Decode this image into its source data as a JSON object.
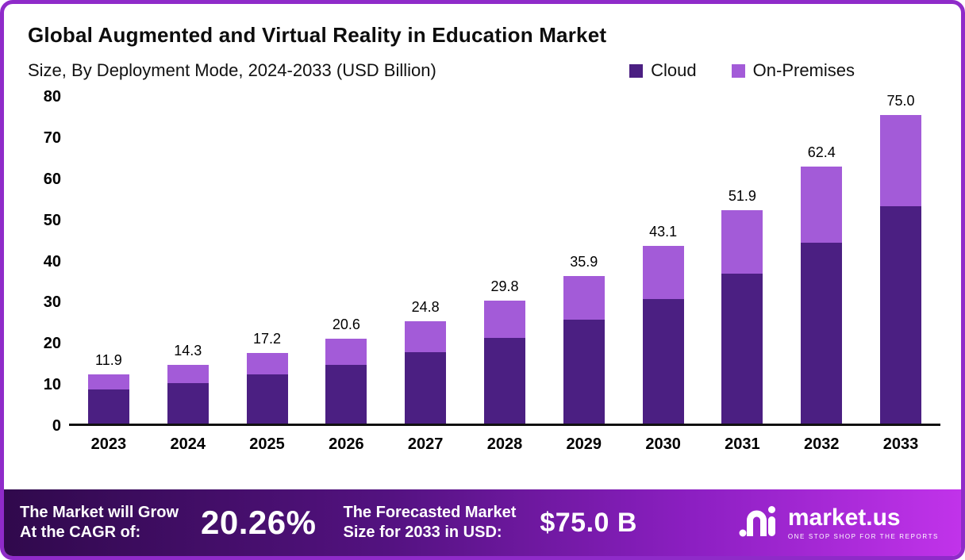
{
  "title": "Global Augmented and Virtual Reality in Education Market",
  "subtitle": "Size, By Deployment Mode, 2024-2033 (USD Billion)",
  "legend": [
    {
      "label": "Cloud",
      "color": "#4B1F82"
    },
    {
      "label": "On-Premises",
      "color": "#A35BD8"
    }
  ],
  "chart_data": {
    "type": "bar",
    "stacked": true,
    "title": "Global Augmented and Virtual Reality in Education Market",
    "subtitle": "Size, By Deployment Mode, 2024-2033 (USD Billion)",
    "categories": [
      "2023",
      "2024",
      "2025",
      "2026",
      "2027",
      "2028",
      "2029",
      "2030",
      "2031",
      "2032",
      "2033"
    ],
    "series": [
      {
        "name": "Cloud",
        "color": "#4B1F82",
        "values": [
          8.3,
          9.8,
          12.0,
          14.3,
          17.4,
          20.9,
          25.3,
          30.3,
          36.4,
          44.0,
          52.8
        ]
      },
      {
        "name": "On-Premises",
        "color": "#A35BD8",
        "values": [
          3.6,
          4.5,
          5.2,
          6.3,
          7.4,
          8.9,
          10.6,
          12.8,
          15.5,
          18.4,
          22.2
        ]
      }
    ],
    "totals": [
      11.9,
      14.3,
      17.2,
      20.6,
      24.8,
      29.8,
      35.9,
      43.1,
      51.9,
      62.4,
      75.0
    ],
    "xlabel": "",
    "ylabel": "",
    "ylim": [
      0,
      80
    ],
    "ytick_step": 10,
    "grid": false,
    "legend_position": "top-right",
    "unit": "USD Billion"
  },
  "footer": {
    "cagr_label_line1": "The Market will Grow",
    "cagr_label_line2": "At the CAGR of:",
    "cagr_value": "20.26%",
    "forecast_label_line1": "The Forecasted Market",
    "forecast_label_line2": "Size for 2033 in USD:",
    "forecast_value": "$75.0 B",
    "brand": "market.us",
    "brand_tagline": "ONE STOP SHOP FOR THE REPORTS"
  },
  "colors": {
    "frame_border": "#8F2BC9",
    "cloud": "#4B1F82",
    "on_premises": "#A35BD8",
    "footer_gradient_start": "#30094C",
    "footer_gradient_end": "#C133EA",
    "text": "#0D0D0D",
    "footer_text": "#FFFFFF"
  }
}
